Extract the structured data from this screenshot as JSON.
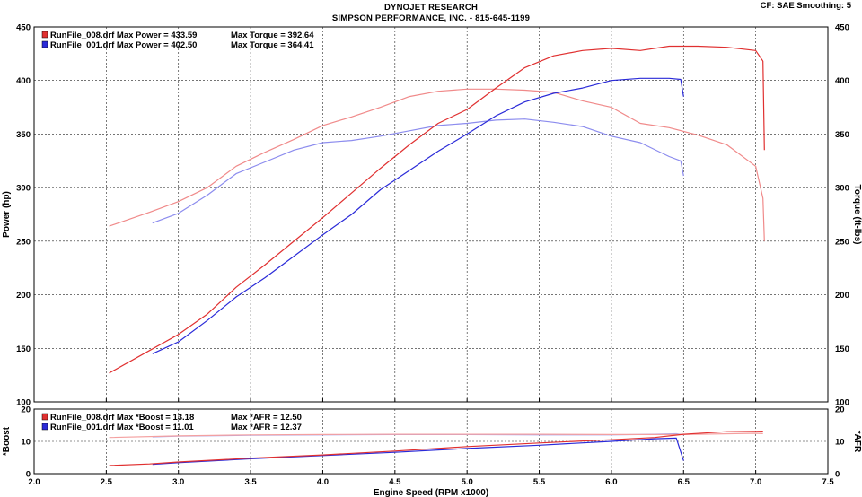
{
  "header": {
    "title": "DYNOJET RESEARCH",
    "subtitle": "SIMPSON PERFORMANCE, INC. - 815-645-1199",
    "cf_info": "CF: SAE  Smoothing: 5"
  },
  "chart_data": [
    {
      "type": "line",
      "panel": "main",
      "xlabel": "Engine Speed (RPM x1000)",
      "ylabel": "Power (hp)",
      "ylabel_right": "Torque (ft-lbs)",
      "xlim": [
        2.0,
        7.5
      ],
      "ylim": [
        100,
        450
      ],
      "ylim_right": [
        100,
        450
      ],
      "grid": true,
      "x_ticks": [
        "2.0",
        "2.5",
        "3.0",
        "3.5",
        "4.0",
        "4.5",
        "5.0",
        "5.5",
        "6.0",
        "6.5",
        "7.0",
        "7.5"
      ],
      "y_ticks": [
        "100",
        "150",
        "200",
        "250",
        "300",
        "350",
        "400",
        "450"
      ],
      "legend_position": "top-left",
      "legend": [
        {
          "file": "RunFile_008.drf",
          "label1": "Max Power =",
          "value1": "433.59",
          "label2": "Max Torque =",
          "value2": "392.64",
          "color": "#e03030"
        },
        {
          "file": "RunFile_001.drf",
          "label1": "Max Power =",
          "value1": "402.50",
          "label2": "Max Torque =",
          "value2": "364.41",
          "color": "#2a2ad8"
        }
      ],
      "series": [
        {
          "run": "RunFile_008.drf",
          "quantity": "Power",
          "color": "#e03030",
          "x": [
            2.52,
            2.8,
            3.0,
            3.2,
            3.4,
            3.6,
            3.8,
            4.0,
            4.2,
            4.4,
            4.6,
            4.8,
            5.0,
            5.2,
            5.4,
            5.6,
            5.8,
            6.0,
            6.2,
            6.4,
            6.6,
            6.8,
            7.0,
            7.05,
            7.06
          ],
          "y": [
            127,
            148,
            163,
            182,
            207,
            228,
            250,
            272,
            295,
            318,
            340,
            360,
            373,
            393,
            412,
            423,
            428,
            430,
            428,
            432,
            432,
            431,
            428,
            418,
            335
          ]
        },
        {
          "run": "RunFile_001.drf",
          "quantity": "Power",
          "color": "#2a2ad8",
          "x": [
            2.82,
            3.0,
            3.2,
            3.4,
            3.6,
            3.8,
            4.0,
            4.2,
            4.4,
            4.6,
            4.8,
            5.0,
            5.2,
            5.4,
            5.6,
            5.8,
            6.0,
            6.2,
            6.4,
            6.48,
            6.5
          ],
          "y": [
            145,
            156,
            176,
            198,
            216,
            236,
            256,
            275,
            298,
            316,
            334,
            350,
            367,
            380,
            388,
            393,
            400,
            402,
            402,
            401,
            385
          ]
        },
        {
          "run": "RunFile_008.drf",
          "quantity": "Torque",
          "color": "#f08a8a",
          "x": [
            2.52,
            2.8,
            3.0,
            3.2,
            3.4,
            3.6,
            3.8,
            4.0,
            4.2,
            4.4,
            4.6,
            4.8,
            5.0,
            5.2,
            5.4,
            5.6,
            5.8,
            6.0,
            6.2,
            6.4,
            6.6,
            6.8,
            7.0,
            7.05,
            7.06
          ],
          "y": [
            264,
            277,
            287,
            300,
            320,
            333,
            345,
            358,
            366,
            375,
            385,
            390,
            392,
            392,
            391,
            389,
            381,
            375,
            360,
            356,
            349,
            340,
            320,
            290,
            250
          ]
        },
        {
          "run": "RunFile_001.drf",
          "quantity": "Torque",
          "color": "#8c8cee",
          "x": [
            2.82,
            3.0,
            3.2,
            3.4,
            3.6,
            3.8,
            4.0,
            4.2,
            4.4,
            4.6,
            4.8,
            5.0,
            5.2,
            5.4,
            5.6,
            5.8,
            6.0,
            6.2,
            6.4,
            6.48,
            6.5
          ],
          "y": [
            267,
            276,
            293,
            313,
            324,
            335,
            342,
            344,
            348,
            353,
            358,
            360,
            363,
            364,
            361,
            357,
            348,
            342,
            329,
            325,
            311
          ]
        }
      ]
    },
    {
      "type": "line",
      "panel": "bottom",
      "ylabel": "*Boost",
      "ylabel_right": "*AFR",
      "xlim": [
        2.0,
        7.5
      ],
      "ylim": [
        0,
        20
      ],
      "ylim_right": [
        0,
        20
      ],
      "grid": true,
      "y_ticks": [
        "0",
        "10",
        "20"
      ],
      "legend_position": "top-left",
      "legend": [
        {
          "file": "RunFile_008.drf",
          "label1": "Max *Boost =",
          "value1": "13.18",
          "label2": "Max *AFR =",
          "value2": "12.50",
          "color": "#e03030"
        },
        {
          "file": "RunFile_001.drf",
          "label1": "Max *Boost =",
          "value1": "11.01",
          "label2": "Max *AFR =",
          "value2": "12.37",
          "color": "#2a2ad8"
        }
      ],
      "series": [
        {
          "run": "RunFile_008.drf",
          "quantity": "Boost",
          "color": "#e03030",
          "x": [
            2.52,
            2.8,
            3.0,
            3.5,
            4.0,
            4.5,
            5.0,
            5.5,
            6.0,
            6.3,
            6.5,
            6.8,
            7.0,
            7.05
          ],
          "y": [
            2.5,
            3.0,
            3.6,
            4.8,
            5.8,
            7.0,
            8.4,
            9.5,
            10.5,
            11.2,
            12.2,
            13.0,
            13.1,
            13.18
          ]
        },
        {
          "run": "RunFile_001.drf",
          "quantity": "Boost",
          "color": "#2a2ad8",
          "x": [
            2.82,
            3.0,
            3.5,
            4.0,
            4.5,
            5.0,
            5.5,
            6.0,
            6.3,
            6.45,
            6.5
          ],
          "y": [
            2.9,
            3.4,
            4.6,
            5.6,
            6.6,
            7.8,
            8.8,
            10.0,
            10.8,
            11.0,
            4.0
          ]
        },
        {
          "run": "RunFile_008.drf",
          "quantity": "AFR",
          "color": "#f4a0a0",
          "x": [
            2.52,
            3.0,
            3.5,
            4.0,
            4.5,
            5.0,
            5.5,
            6.0,
            6.5,
            7.0,
            7.05
          ],
          "y": [
            11.2,
            11.7,
            12.0,
            12.1,
            12.2,
            12.2,
            12.2,
            12.1,
            12.1,
            12.5,
            12.4
          ]
        },
        {
          "run": "RunFile_001.drf",
          "quantity": "AFR",
          "color": "#a8a8f0",
          "x": [
            2.82,
            3.0,
            3.5,
            4.0,
            4.5,
            5.0,
            5.5,
            6.0,
            6.3,
            6.45,
            6.5
          ],
          "y": [
            11.4,
            11.6,
            11.9,
            12.0,
            12.1,
            12.1,
            12.0,
            12.0,
            12.2,
            12.37,
            12.0
          ]
        }
      ]
    }
  ]
}
